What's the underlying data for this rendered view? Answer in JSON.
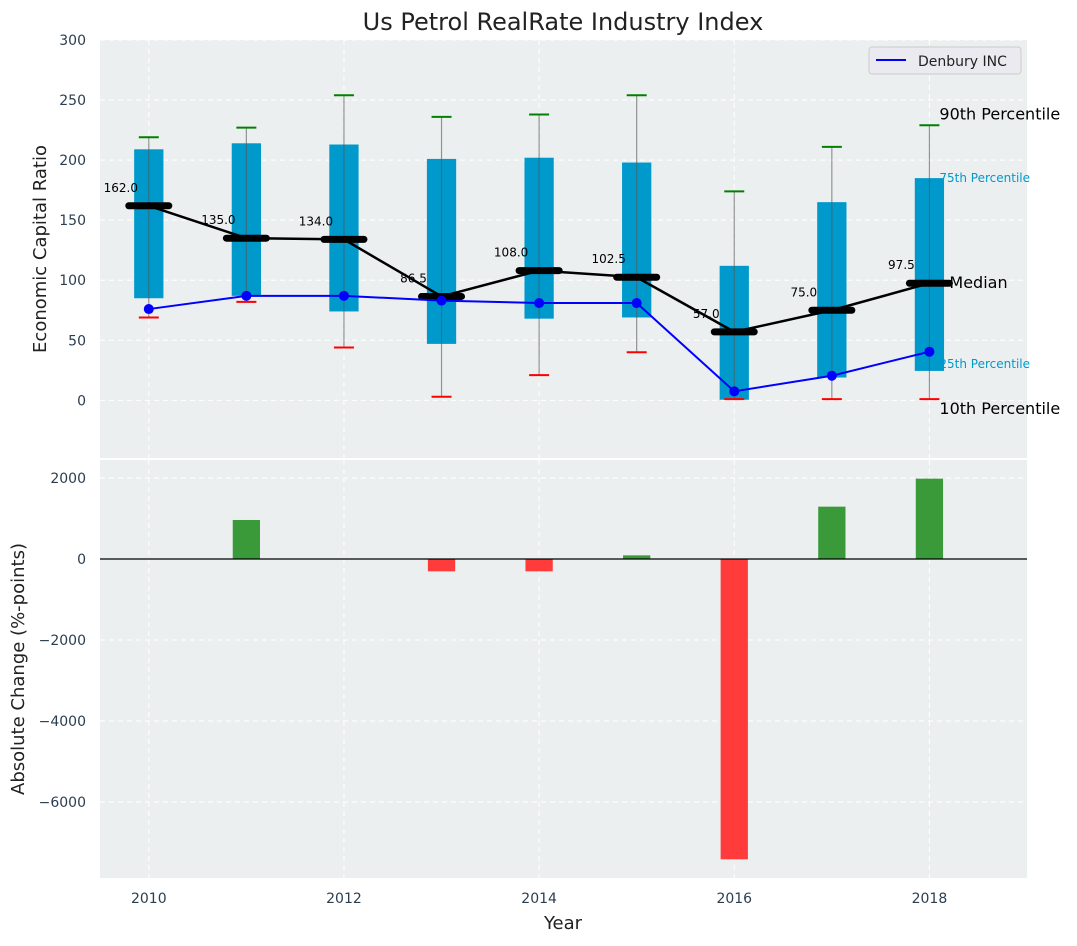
{
  "chart_data": [
    {
      "type": "box",
      "title": "Us Petrol RealRate Industry Index",
      "xlabel": "",
      "ylabel": "Economic Capital Ratio",
      "ylim": [
        -48,
        300
      ],
      "xlim": [
        2009.5,
        2019
      ],
      "yticks": [
        0,
        50,
        100,
        150,
        200,
        250,
        300
      ],
      "grid": true,
      "legend": {
        "position": "top-right",
        "entries": [
          "Denbury INC"
        ]
      },
      "x": [
        2010,
        2011,
        2012,
        2013,
        2014,
        2015,
        2016,
        2017,
        2018
      ],
      "p10": [
        69,
        82,
        44,
        3,
        21,
        40,
        1,
        1,
        1
      ],
      "p25": [
        85,
        87,
        74,
        47,
        68,
        69,
        0.5,
        19,
        24.5
      ],
      "median": [
        162.0,
        135.0,
        134.0,
        86.5,
        108.0,
        102.5,
        57.0,
        75.0,
        97.5
      ],
      "median_labels": [
        "162.0",
        "135.0",
        "134.0",
        "86.5",
        "108.0",
        "102.5",
        "57.0",
        "75.0",
        "97.5"
      ],
      "p75": [
        209,
        214,
        213,
        201,
        202,
        198,
        112,
        165,
        185
      ],
      "p90": [
        219,
        227,
        254,
        236,
        238,
        254,
        174,
        211,
        229
      ],
      "series": [
        {
          "name": "Denbury INC",
          "values": [
            76,
            87,
            87,
            83,
            81,
            81,
            7.5,
            20.5,
            40.5
          ],
          "color": "#0000ff"
        }
      ],
      "annotations": [
        "90th Percentile",
        "75th Percentile",
        "Median",
        "25th Percentile",
        "10th Percentile"
      ],
      "colors": {
        "box": "#0099cc",
        "median": "#000000",
        "p90": "#008000",
        "p10": "#ff0000",
        "background": "#eceff0"
      }
    },
    {
      "type": "bar",
      "xlabel": "Year",
      "ylabel": "Absolute Change (%-points)",
      "ylim": [
        -7876,
        2444
      ],
      "xlim": [
        2009.5,
        2019
      ],
      "yticks": [
        2000,
        0,
        -2000,
        -4000,
        -6000
      ],
      "ytick_labels": [
        "2000",
        "0",
        "−2000",
        "−4000",
        "−6000"
      ],
      "xticks": [
        2010,
        2012,
        2014,
        2016,
        2018
      ],
      "xtick_labels": [
        "2010",
        "2012",
        "2014",
        "2016",
        "2018"
      ],
      "x": [
        2010,
        2011,
        2012,
        2013,
        2014,
        2015,
        2016,
        2017,
        2018
      ],
      "values": [
        0,
        963,
        0,
        -305,
        -305,
        90,
        -7415,
        1292,
        1984
      ],
      "colors": {
        "positive": "#3a9a3a",
        "negative": "#ff3b3b"
      }
    }
  ]
}
